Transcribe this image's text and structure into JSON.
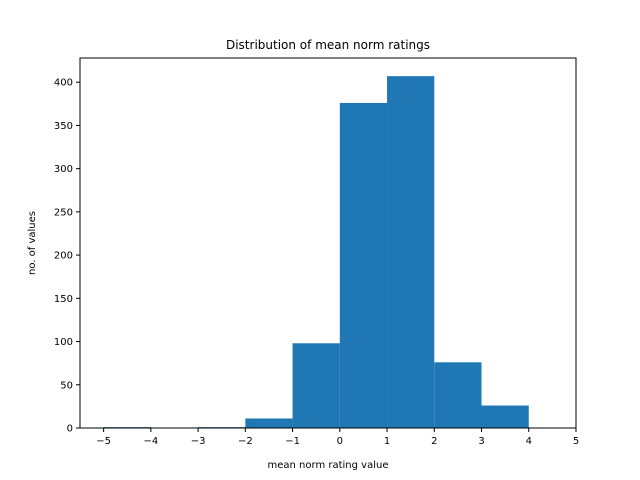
{
  "chart_data": {
    "type": "bar",
    "title": "Distribution of mean norm ratings",
    "xlabel": "mean norm rating value",
    "ylabel": "no. of values",
    "xlim": [
      -5.5,
      5
    ],
    "ylim": [
      0,
      428
    ],
    "grid": false,
    "bin_edges": [
      -5.0,
      -4.0,
      -3.0,
      -2.0,
      -1.0,
      0.0,
      1.0,
      2.0,
      3.0,
      4.0
    ],
    "bins": [
      {
        "start": -5.0,
        "end": -4.0,
        "count": 1
      },
      {
        "start": -4.0,
        "end": -3.0,
        "count": 0
      },
      {
        "start": -3.0,
        "end": -2.0,
        "count": 1
      },
      {
        "start": -2.0,
        "end": -1.0,
        "count": 11
      },
      {
        "start": -1.0,
        "end": 0.0,
        "count": 98
      },
      {
        "start": 0.0,
        "end": 1.0,
        "count": 376
      },
      {
        "start": 1.0,
        "end": 2.0,
        "count": 407
      },
      {
        "start": 2.0,
        "end": 3.0,
        "count": 76
      },
      {
        "start": 3.0,
        "end": 4.0,
        "count": 26
      }
    ],
    "x_ticks": [
      -5,
      -4,
      -3,
      -2,
      -1,
      0,
      1,
      2,
      3,
      4,
      5
    ],
    "x_tick_labels": [
      "−5",
      "−4",
      "−3",
      "−2",
      "−1",
      "0",
      "1",
      "2",
      "3",
      "4",
      "5"
    ],
    "y_ticks": [
      0,
      50,
      100,
      150,
      200,
      250,
      300,
      350,
      400
    ],
    "y_tick_labels": [
      "0",
      "50",
      "100",
      "150",
      "200",
      "250",
      "300",
      "350",
      "400"
    ],
    "bar_color": "#1f77b4"
  }
}
